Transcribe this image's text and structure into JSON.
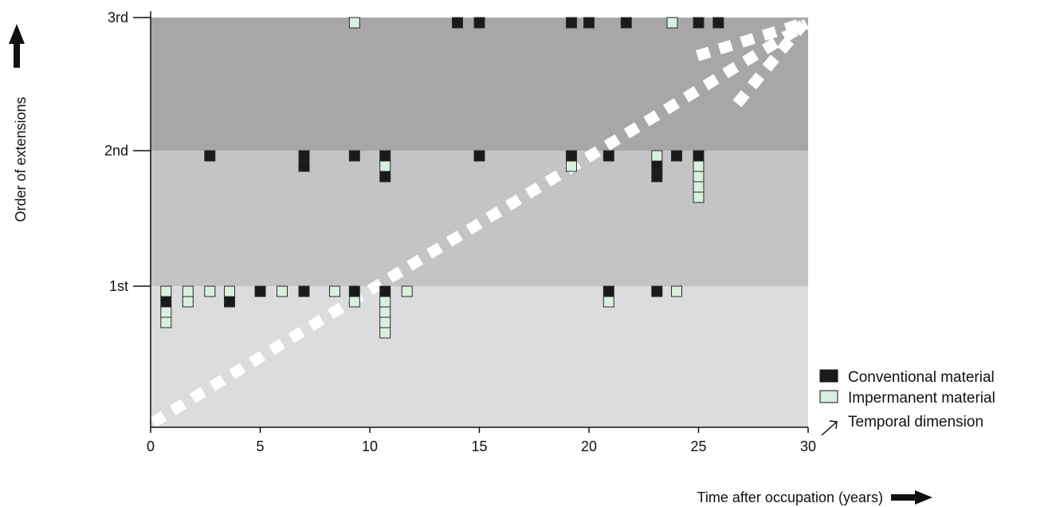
{
  "chart_data": {
    "type": "scatter",
    "title": "",
    "xlabel": "Time after occupation (years)",
    "ylabel": "Order of extensions",
    "xlim": [
      0,
      30
    ],
    "x_ticks": [
      0,
      5,
      10,
      15,
      20,
      25,
      30
    ],
    "y_categories": [
      "1st",
      "2nd",
      "3rd"
    ],
    "grid": false,
    "legend_position": "bottom-right",
    "colors": {
      "conventional": "#1a1a1a",
      "impermanent": "#d9efe0",
      "band_1st": "#dcdcde",
      "band_2nd": "#c4c3c6",
      "band_3rd": "#a8a6a9",
      "temporal": "#ffffff"
    },
    "legend": [
      {
        "key": "conventional",
        "label": "Conventional material",
        "marker": "black-square"
      },
      {
        "key": "impermanent",
        "label": "Impermanent material",
        "marker": "pale-green-square"
      },
      {
        "key": "temporal",
        "label": "Temporal dimension",
        "marker": "diagonal-arrow"
      }
    ],
    "series": [
      {
        "order": "1st",
        "stacks": [
          {
            "x": 0.7,
            "materials": [
              "impermanent",
              "conventional",
              "impermanent",
              "impermanent"
            ]
          },
          {
            "x": 1.7,
            "materials": [
              "impermanent",
              "impermanent"
            ]
          },
          {
            "x": 2.7,
            "materials": [
              "impermanent"
            ]
          },
          {
            "x": 3.6,
            "materials": [
              "impermanent",
              "conventional"
            ]
          },
          {
            "x": 5.0,
            "materials": [
              "conventional"
            ]
          },
          {
            "x": 6.0,
            "materials": [
              "impermanent"
            ]
          },
          {
            "x": 7.0,
            "materials": [
              "conventional"
            ]
          },
          {
            "x": 8.4,
            "materials": [
              "impermanent"
            ]
          },
          {
            "x": 9.3,
            "materials": [
              "conventional",
              "impermanent"
            ]
          },
          {
            "x": 10.7,
            "materials": [
              "conventional",
              "impermanent",
              "impermanent",
              "impermanent",
              "impermanent"
            ]
          },
          {
            "x": 11.7,
            "materials": [
              "impermanent"
            ]
          },
          {
            "x": 20.9,
            "materials": [
              "conventional",
              "impermanent"
            ]
          },
          {
            "x": 23.1,
            "materials": [
              "conventional"
            ]
          },
          {
            "x": 24.0,
            "materials": [
              "impermanent"
            ]
          }
        ]
      },
      {
        "order": "2nd",
        "stacks": [
          {
            "x": 2.7,
            "materials": [
              "conventional"
            ]
          },
          {
            "x": 7.0,
            "materials": [
              "conventional",
              "conventional"
            ]
          },
          {
            "x": 9.3,
            "materials": [
              "conventional"
            ]
          },
          {
            "x": 10.7,
            "materials": [
              "conventional",
              "impermanent",
              "conventional"
            ]
          },
          {
            "x": 15.0,
            "materials": [
              "conventional"
            ]
          },
          {
            "x": 19.2,
            "materials": [
              "conventional",
              "impermanent"
            ]
          },
          {
            "x": 20.9,
            "materials": [
              "conventional"
            ]
          },
          {
            "x": 23.1,
            "materials": [
              "impermanent",
              "conventional",
              "conventional"
            ]
          },
          {
            "x": 24.0,
            "materials": [
              "conventional"
            ]
          },
          {
            "x": 25.0,
            "materials": [
              "conventional",
              "impermanent",
              "impermanent",
              "impermanent",
              "impermanent"
            ]
          }
        ]
      },
      {
        "order": "3rd",
        "stacks": [
          {
            "x": 9.3,
            "materials": [
              "impermanent"
            ]
          },
          {
            "x": 14.0,
            "materials": [
              "conventional"
            ]
          },
          {
            "x": 15.0,
            "materials": [
              "conventional"
            ]
          },
          {
            "x": 19.2,
            "materials": [
              "conventional"
            ]
          },
          {
            "x": 20.0,
            "materials": [
              "conventional"
            ]
          },
          {
            "x": 21.7,
            "materials": [
              "conventional"
            ]
          },
          {
            "x": 23.8,
            "materials": [
              "impermanent"
            ]
          },
          {
            "x": 25.0,
            "materials": [
              "conventional"
            ]
          },
          {
            "x": 25.9,
            "materials": [
              "conventional"
            ]
          }
        ]
      }
    ]
  }
}
